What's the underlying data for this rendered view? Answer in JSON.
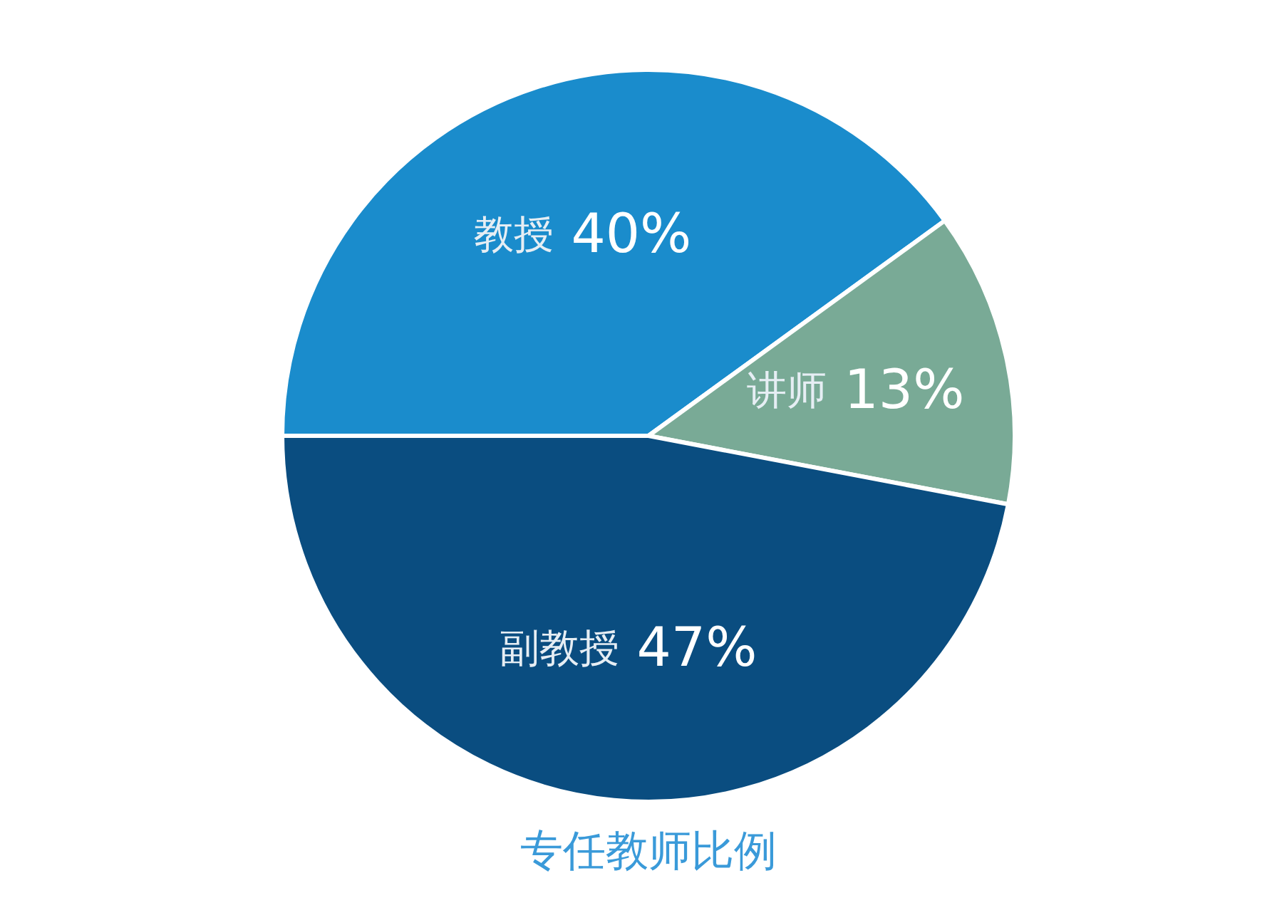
{
  "chart_data": {
    "type": "pie",
    "title": "专任教师比例",
    "categories": [
      "教授",
      "讲师",
      "副教授"
    ],
    "values": [
      40,
      13,
      47
    ],
    "value_labels": [
      "40%",
      "13%",
      "47%"
    ],
    "colors": [
      "#1a8ccc",
      "#79aa96",
      "#0a4d80"
    ]
  }
}
